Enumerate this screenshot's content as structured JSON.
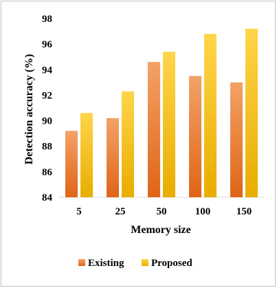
{
  "chart_data": {
    "type": "bar",
    "title": "",
    "xlabel": "Memory size",
    "ylabel": "Detection accuracy (%)",
    "categories": [
      "5",
      "25",
      "50",
      "100",
      "150"
    ],
    "series": [
      {
        "name": "Existing",
        "values": [
          89.2,
          90.2,
          94.6,
          93.5,
          93.0
        ],
        "color": "#ed7d31"
      },
      {
        "name": "Proposed",
        "values": [
          90.6,
          92.3,
          95.4,
          96.8,
          97.2
        ],
        "color": "#ffc000"
      }
    ],
    "ylim": [
      84,
      98
    ],
    "yticks": [
      "84",
      "86",
      "88",
      "90",
      "92",
      "94",
      "96",
      "98"
    ],
    "grid": false,
    "legend_position": "bottom"
  }
}
